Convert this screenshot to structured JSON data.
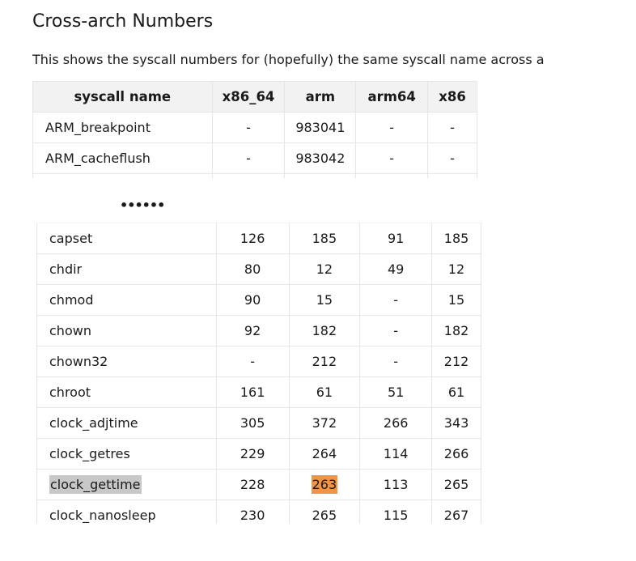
{
  "page": {
    "title": "Cross-arch Numbers",
    "intro": "This shows the syscall numbers for (hopefully) the same syscall name across a",
    "ellipsis": "••••••"
  },
  "table": {
    "headers": [
      "syscall name",
      "x86_64",
      "arm",
      "arm64",
      "x86"
    ],
    "top_rows": [
      [
        "ARM_breakpoint",
        "-",
        "983041",
        "-",
        "-"
      ],
      [
        "ARM_cacheflush",
        "-",
        "983042",
        "-",
        "-"
      ]
    ],
    "bottom_rows": [
      [
        "capset",
        "126",
        "185",
        "91",
        "185"
      ],
      [
        "chdir",
        "80",
        "12",
        "49",
        "12"
      ],
      [
        "chmod",
        "90",
        "15",
        "-",
        "15"
      ],
      [
        "chown",
        "92",
        "182",
        "-",
        "182"
      ],
      [
        "chown32",
        "-",
        "212",
        "-",
        "212"
      ],
      [
        "chroot",
        "161",
        "61",
        "51",
        "61"
      ],
      [
        "clock_adjtime",
        "305",
        "372",
        "266",
        "343"
      ],
      [
        "clock_getres",
        "229",
        "264",
        "114",
        "266"
      ],
      [
        "clock_gettime",
        "228",
        "263",
        "113",
        "265"
      ],
      [
        "clock_nanosleep",
        "230",
        "265",
        "115",
        "267"
      ]
    ]
  },
  "highlights": {
    "grey_selection_color": "#c8c8c8",
    "orange_selection_color": "#f59342"
  }
}
